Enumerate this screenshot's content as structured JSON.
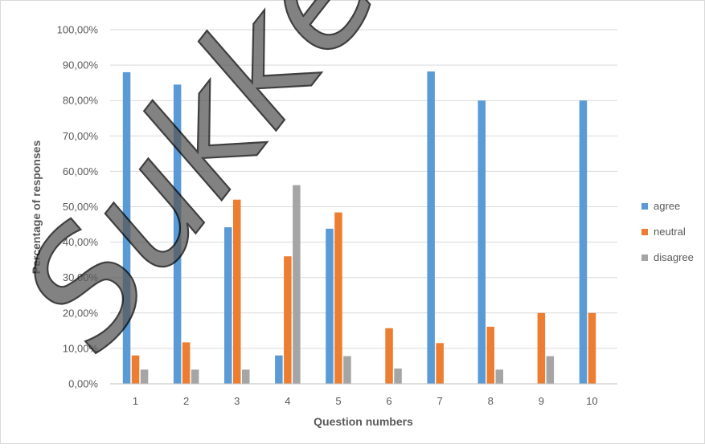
{
  "chart_data": {
    "type": "bar",
    "title": "",
    "xlabel": "Question numbers",
    "ylabel": "Percentage of responses",
    "categories": [
      "1",
      "2",
      "3",
      "4",
      "5",
      "6",
      "7",
      "8",
      "9",
      "10"
    ],
    "ylim": [
      0,
      100
    ],
    "y_ticks": [
      "0,00%",
      "10,00%",
      "20,00%",
      "30,00%",
      "40,00%",
      "50,00%",
      "60,00%",
      "70,00%",
      "80,00%",
      "90,00%",
      "100,00%"
    ],
    "grid": true,
    "legend_position": "right",
    "series": [
      {
        "name": "agree",
        "color": "#5B9BD5",
        "values": [
          88,
          84.5,
          44.2,
          8,
          43.8,
          0,
          88.2,
          80,
          0,
          80
        ]
      },
      {
        "name": "neutral",
        "color": "#ED7D31",
        "values": [
          8,
          11.7,
          52,
          36,
          48.4,
          15.7,
          11.5,
          16.1,
          20,
          20
        ]
      },
      {
        "name": "disagree",
        "color": "#A5A5A5",
        "values": [
          4,
          4,
          4,
          56.1,
          7.8,
          4.3,
          0,
          4,
          7.8,
          0
        ]
      }
    ]
  },
  "watermark": {
    "text": "Sukketo"
  }
}
